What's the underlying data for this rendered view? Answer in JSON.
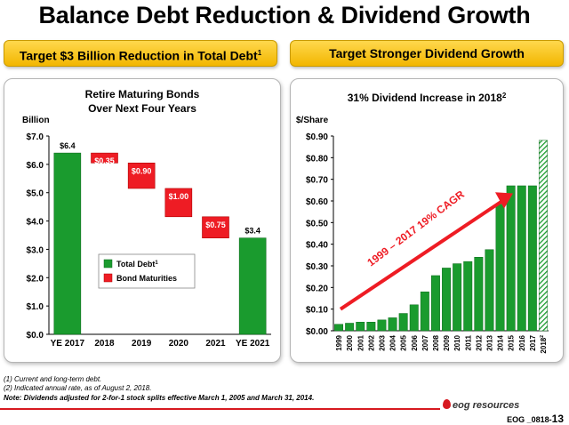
{
  "title": "Balance Debt Reduction & Dividend Growth",
  "left_banner": {
    "text": "Target $3 Billion Reduction in Total Debt",
    "sup": "1"
  },
  "right_banner": {
    "text": "Target Stronger Dividend Growth"
  },
  "footnotes": {
    "f1": "(1)   Current and long-term debt.",
    "f2": "(2)   Indicated annual rate, as of August 2, 2018.",
    "note": "Note: Dividends adjusted for 2-for-1 stock splits effective March 1, 2005 and March 31, 2014."
  },
  "logo_text": "eog resources",
  "page_id": {
    "code": "EOG _0818-",
    "num": "13"
  },
  "colors": {
    "green": "#1a9b2e",
    "red": "#ee1c24",
    "accent_red": "#d71920"
  },
  "chart_data": [
    {
      "type": "bar",
      "subtype": "waterfall",
      "title": "Retire Maturing Bonds",
      "subtitle": "Over Next Four Years",
      "ylabel": "Billion",
      "ylim": [
        0,
        7
      ],
      "yticks": [
        "$0.0",
        "$1.0",
        "$2.0",
        "$3.0",
        "$4.0",
        "$5.0",
        "$6.0",
        "$7.0"
      ],
      "categories": [
        "YE 2017",
        "2018",
        "2019",
        "2020",
        "2021",
        "YE 2021"
      ],
      "bars": [
        {
          "category": "YE 2017",
          "kind": "total",
          "base": 0,
          "value": 6.4,
          "label": "$6.4"
        },
        {
          "category": "2018",
          "kind": "reduction",
          "base": 6.05,
          "value": 0.35,
          "label": "$0.35"
        },
        {
          "category": "2019",
          "kind": "reduction",
          "base": 5.15,
          "value": 0.9,
          "label": "$0.90"
        },
        {
          "category": "2020",
          "kind": "reduction",
          "base": 4.15,
          "value": 1.0,
          "label": "$1.00"
        },
        {
          "category": "2021",
          "kind": "reduction",
          "base": 3.4,
          "value": 0.75,
          "label": "$0.75"
        },
        {
          "category": "YE 2021",
          "kind": "total",
          "base": 0,
          "value": 3.4,
          "label": "$3.4"
        }
      ],
      "legend": [
        {
          "name": "Total Debt",
          "sup": "1",
          "color": "green"
        },
        {
          "name": "Bond Maturities",
          "color": "red"
        }
      ],
      "legend_position": "center"
    },
    {
      "type": "bar",
      "title": "31% Dividend Increase in 2018",
      "title_sup": "2",
      "ylabel": "$/Share",
      "ylim": [
        0,
        0.9
      ],
      "yticks": [
        "$0.00",
        "$0.10",
        "$0.20",
        "$0.30",
        "$0.40",
        "$0.50",
        "$0.60",
        "$0.70",
        "$0.80",
        "$0.90"
      ],
      "categories": [
        "1999",
        "2000",
        "2001",
        "2002",
        "2003",
        "2004",
        "2005",
        "2006",
        "2007",
        "2008",
        "2009",
        "2010",
        "2011",
        "2012",
        "2013",
        "2014",
        "2015",
        "2016",
        "2017",
        "2018"
      ],
      "category_sup_last": "2",
      "values": [
        0.03,
        0.035,
        0.04,
        0.04,
        0.05,
        0.06,
        0.08,
        0.12,
        0.18,
        0.255,
        0.29,
        0.31,
        0.32,
        0.34,
        0.375,
        0.585,
        0.67,
        0.67,
        0.67,
        0.88
      ],
      "hatched_last": true,
      "annotation": "1999 – 2017 19% CAGR"
    }
  ]
}
